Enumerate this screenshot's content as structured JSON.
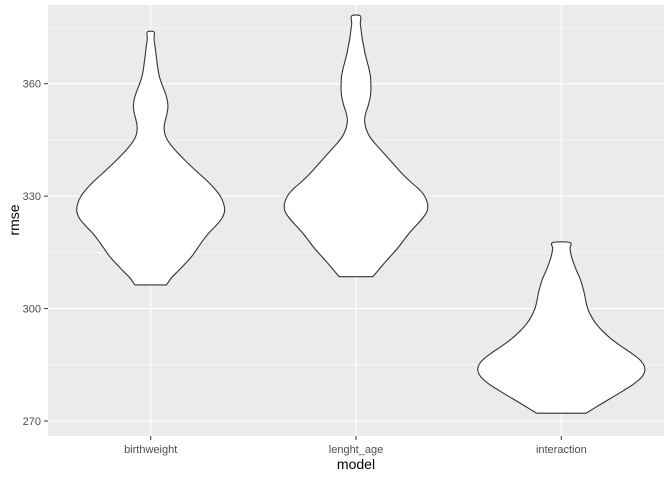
{
  "chart_data": {
    "type": "violin",
    "xlabel": "model",
    "ylabel": "rmse",
    "categories": [
      "birthweight",
      "lenght_age",
      "interaction"
    ],
    "ylim": [
      266,
      381
    ],
    "yticks": [
      270,
      300,
      330,
      360
    ],
    "grid": true,
    "colors": {
      "panel": "#ebebeb",
      "grid_major": "#ffffff",
      "violin_fill": "#ffffff",
      "violin_stroke": "#333333"
    },
    "violins": [
      {
        "category": "birthweight",
        "ymin": 306.3,
        "ymax": 373.8,
        "profile": [
          [
            306.3,
            0.33
          ],
          [
            308,
            0.42
          ],
          [
            310,
            0.57
          ],
          [
            312,
            0.72
          ],
          [
            314,
            0.86
          ],
          [
            316,
            0.97
          ],
          [
            318,
            1.08
          ],
          [
            320,
            1.2
          ],
          [
            322,
            1.35
          ],
          [
            324,
            1.48
          ],
          [
            326,
            1.54
          ],
          [
            328,
            1.52
          ],
          [
            330,
            1.45
          ],
          [
            332,
            1.33
          ],
          [
            334,
            1.18
          ],
          [
            336,
            1.01
          ],
          [
            338,
            0.84
          ],
          [
            340,
            0.68
          ],
          [
            342,
            0.53
          ],
          [
            344,
            0.4
          ],
          [
            346,
            0.31
          ],
          [
            348,
            0.28
          ],
          [
            350,
            0.3
          ],
          [
            352,
            0.34
          ],
          [
            354,
            0.36
          ],
          [
            356,
            0.34
          ],
          [
            358,
            0.29
          ],
          [
            360,
            0.23
          ],
          [
            362,
            0.18
          ],
          [
            364,
            0.15
          ],
          [
            366,
            0.13
          ],
          [
            368,
            0.11
          ],
          [
            370,
            0.09
          ],
          [
            372,
            0.07
          ],
          [
            373.8,
            0.07
          ]
        ]
      },
      {
        "category": "lenght_age",
        "ymin": 308.5,
        "ymax": 378.1,
        "profile": [
          [
            308.5,
            0.35
          ],
          [
            310,
            0.45
          ],
          [
            312,
            0.58
          ],
          [
            314,
            0.72
          ],
          [
            316,
            0.86
          ],
          [
            318,
            0.98
          ],
          [
            320,
            1.1
          ],
          [
            322,
            1.24
          ],
          [
            324,
            1.38
          ],
          [
            326,
            1.48
          ],
          [
            328,
            1.49
          ],
          [
            330,
            1.43
          ],
          [
            332,
            1.3
          ],
          [
            334,
            1.12
          ],
          [
            336,
            0.96
          ],
          [
            338,
            0.82
          ],
          [
            340,
            0.68
          ],
          [
            342,
            0.54
          ],
          [
            344,
            0.4
          ],
          [
            346,
            0.28
          ],
          [
            348,
            0.21
          ],
          [
            350,
            0.18
          ],
          [
            352,
            0.2
          ],
          [
            354,
            0.25
          ],
          [
            356,
            0.29
          ],
          [
            358,
            0.31
          ],
          [
            360,
            0.31
          ],
          [
            362,
            0.3
          ],
          [
            364,
            0.27
          ],
          [
            366,
            0.23
          ],
          [
            368,
            0.19
          ],
          [
            370,
            0.16
          ],
          [
            372,
            0.13
          ],
          [
            374,
            0.11
          ],
          [
            376,
            0.09
          ],
          [
            378.1,
            0.09
          ]
        ]
      },
      {
        "category": "interaction",
        "ymin": 272.1,
        "ymax": 317.6,
        "profile": [
          [
            272.1,
            0.52
          ],
          [
            274,
            0.76
          ],
          [
            276,
            1.02
          ],
          [
            278,
            1.28
          ],
          [
            280,
            1.52
          ],
          [
            282,
            1.69
          ],
          [
            284,
            1.74
          ],
          [
            286,
            1.66
          ],
          [
            288,
            1.47
          ],
          [
            290,
            1.24
          ],
          [
            292,
            1.03
          ],
          [
            294,
            0.86
          ],
          [
            296,
            0.72
          ],
          [
            298,
            0.62
          ],
          [
            300,
            0.55
          ],
          [
            302,
            0.51
          ],
          [
            304,
            0.48
          ],
          [
            306,
            0.44
          ],
          [
            308,
            0.39
          ],
          [
            310,
            0.32
          ],
          [
            312,
            0.26
          ],
          [
            314,
            0.21
          ],
          [
            316,
            0.18
          ],
          [
            317.6,
            0.18
          ]
        ]
      }
    ]
  }
}
